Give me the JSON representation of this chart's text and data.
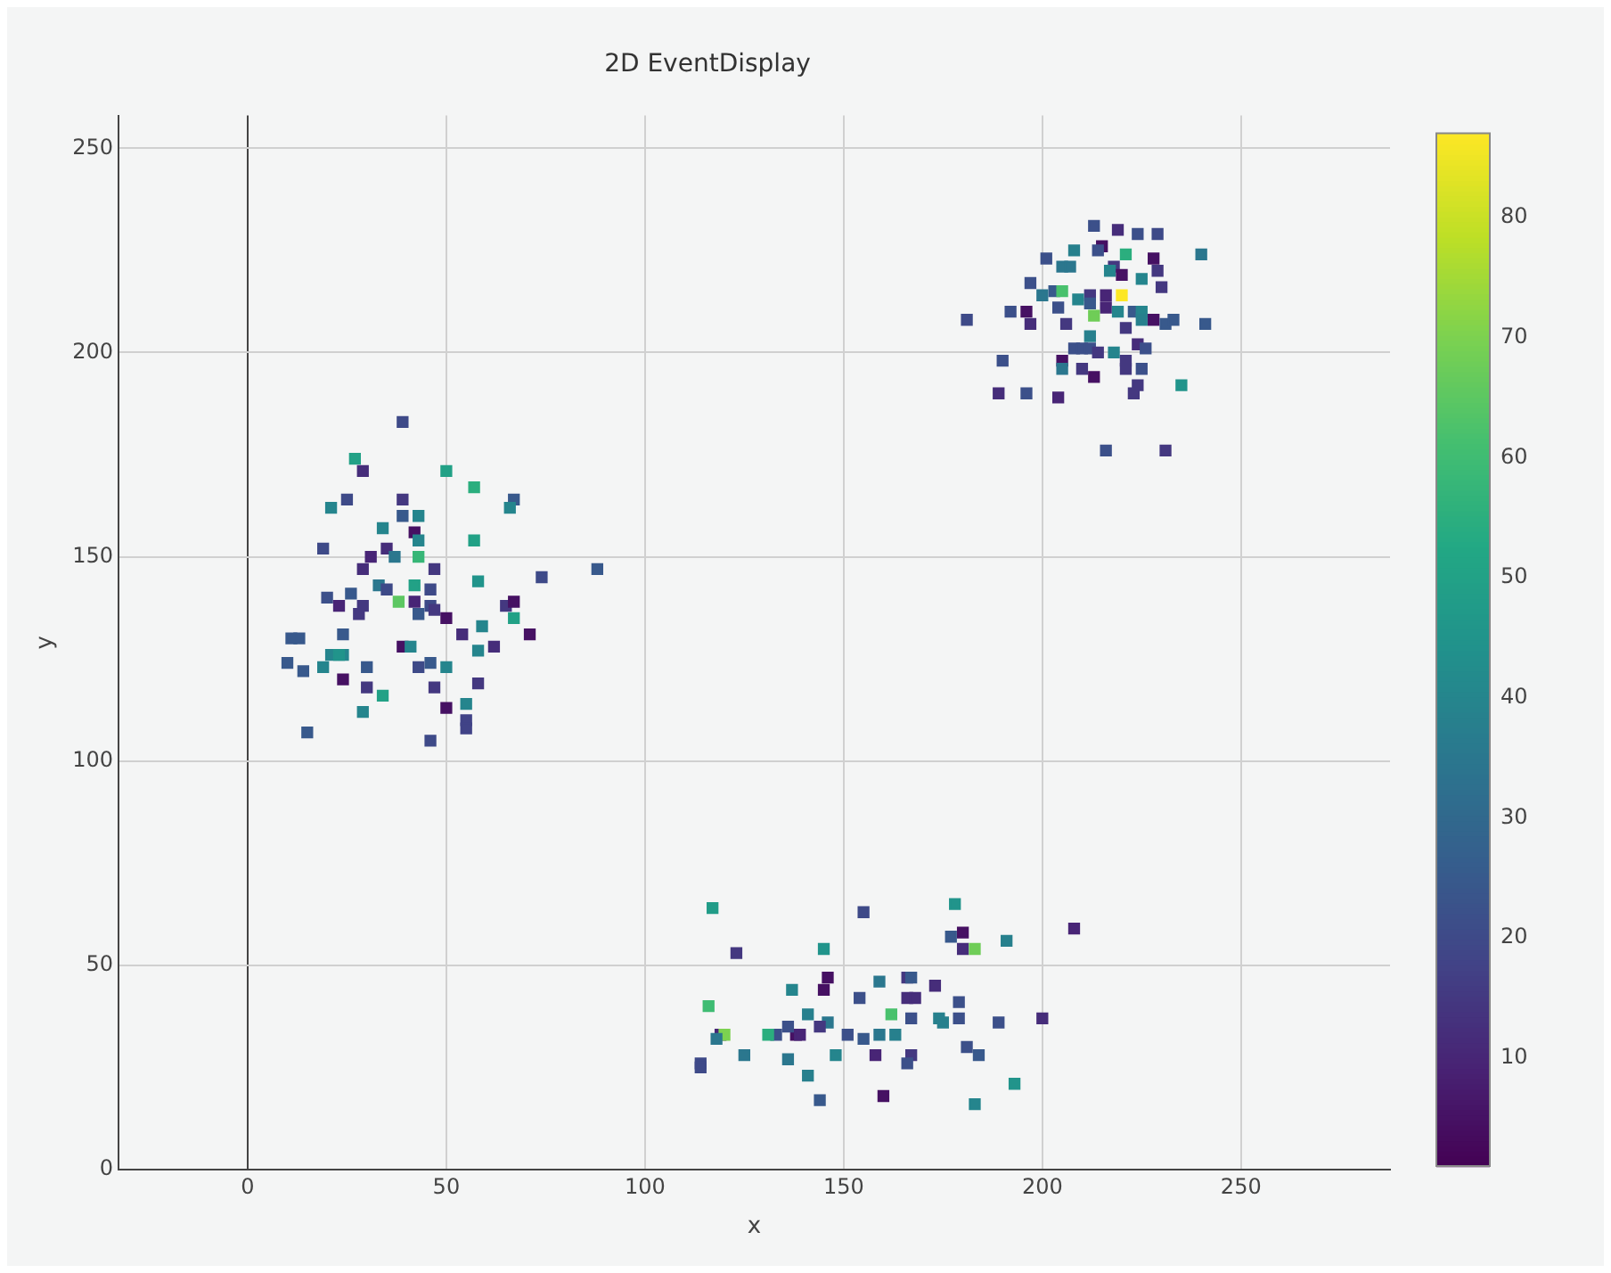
{
  "chart_data": {
    "type": "scatter",
    "title": "2D EventDisplay",
    "xlabel": "x",
    "ylabel": "y",
    "xlim": [
      -32.5,
      287.5
    ],
    "ylim": [
      0,
      258
    ],
    "xticks": [
      0,
      50,
      100,
      150,
      200,
      250
    ],
    "yticks": [
      0,
      50,
      100,
      150,
      200,
      250
    ],
    "grid": true,
    "legend": false,
    "marker": "square",
    "clim": [
      1,
      87
    ],
    "cticks": [
      10,
      20,
      30,
      40,
      50,
      60,
      70,
      80
    ],
    "series": [
      {
        "x": [
          39,
          27,
          29,
          50,
          57,
          25,
          21,
          39,
          39,
          43,
          67,
          66,
          34,
          42,
          43,
          57,
          19,
          31,
          35,
          37,
          43,
          29,
          47,
          74,
          88,
          58,
          33,
          35,
          42,
          46,
          20,
          26,
          23,
          29,
          28,
          38,
          42,
          46,
          43,
          47,
          50,
          54,
          65,
          67,
          67,
          71,
          59,
          11,
          13,
          24,
          24,
          21,
          23,
          10,
          19,
          14,
          30,
          39,
          41,
          43,
          46,
          50,
          58,
          62,
          24,
          30,
          47,
          58,
          34,
          29,
          50,
          55,
          55,
          55,
          15,
          46,
          213,
          219,
          224,
          229,
          215,
          214,
          208,
          221,
          228,
          240,
          201,
          205,
          207,
          218,
          217,
          220,
          229,
          225,
          197,
          203,
          205,
          200,
          212,
          216,
          220,
          230,
          209,
          212,
          204,
          216,
          219,
          223,
          225,
          213,
          192,
          196,
          181,
          197,
          206,
          221,
          225,
          228,
          231,
          233,
          241,
          212,
          208,
          210,
          212,
          214,
          218,
          224,
          226,
          190,
          205,
          205,
          210,
          221,
          221,
          225,
          213,
          224,
          223,
          235,
          189,
          196,
          204,
          216,
          231,
          117,
          155,
          178,
          208,
          180,
          177,
          180,
          183,
          191,
          145,
          123,
          146,
          145,
          137,
          159,
          166,
          167,
          173,
          166,
          168,
          154,
          179,
          162,
          141,
          116,
          167,
          174,
          175,
          179,
          189,
          200,
          146,
          144,
          138,
          139,
          136,
          133,
          131,
          119,
          120,
          118,
          151,
          155,
          159,
          163,
          158,
          167,
          166,
          181,
          184,
          125,
          136,
          148,
          114,
          114,
          141,
          193,
          144,
          160,
          183
        ],
        "values": [
          183,
          174,
          171,
          171,
          167,
          164,
          162,
          164,
          160,
          160,
          164,
          162,
          157,
          156,
          154,
          154,
          152,
          150,
          152,
          150,
          150,
          147,
          147,
          145,
          147,
          144,
          143,
          142,
          143,
          142,
          140,
          141,
          138,
          138,
          136,
          139,
          139,
          138,
          136,
          137,
          135,
          131,
          138,
          139,
          135,
          131,
          133,
          130,
          130,
          131,
          126,
          126,
          126,
          124,
          123,
          122,
          123,
          128,
          128,
          123,
          124,
          123,
          127,
          128,
          120,
          118,
          118,
          119,
          116,
          112,
          113,
          114,
          110,
          108,
          107,
          105,
          231,
          230,
          229,
          229,
          226,
          225,
          225,
          224,
          223,
          224,
          223,
          221,
          221,
          221,
          220,
          219,
          220,
          218,
          217,
          215,
          215,
          214,
          214,
          214,
          214,
          216,
          213,
          212,
          211,
          211,
          210,
          210,
          210,
          209,
          210,
          210,
          208,
          207,
          207,
          206,
          208,
          208,
          207,
          208,
          207,
          204,
          201,
          201,
          201,
          200,
          200,
          202,
          201,
          198,
          198,
          196,
          196,
          198,
          196,
          196,
          194,
          192,
          190,
          192,
          190,
          190,
          189,
          176,
          176,
          64,
          63,
          65,
          59,
          58,
          57,
          54,
          54,
          56,
          54,
          53,
          47,
          44,
          44,
          46,
          47,
          47,
          45,
          42,
          42,
          42,
          41,
          38,
          38,
          40,
          37,
          37,
          36,
          37,
          36,
          37,
          36,
          35,
          33,
          33,
          35,
          33,
          33,
          33,
          33,
          32,
          33,
          32,
          33,
          33,
          28,
          28,
          26,
          30,
          28,
          28,
          27,
          28,
          26,
          25,
          23,
          21,
          17,
          18,
          16
        ],
        "cvalues": [
          20,
          50,
          12,
          50,
          55,
          20,
          40,
          15,
          25,
          40,
          25,
          40,
          40,
          5,
          40,
          50,
          20,
          10,
          12,
          35,
          58,
          12,
          15,
          20,
          25,
          45,
          35,
          20,
          50,
          20,
          22,
          25,
          10,
          15,
          15,
          65,
          10,
          20,
          25,
          15,
          5,
          12,
          15,
          5,
          50,
          5,
          40,
          25,
          25,
          25,
          40,
          40,
          45,
          25,
          40,
          25,
          25,
          5,
          40,
          20,
          25,
          40,
          40,
          12,
          5,
          15,
          15,
          15,
          50,
          40,
          5,
          40,
          18,
          18,
          25,
          20,
          22,
          12,
          22,
          20,
          5,
          22,
          38,
          55,
          5,
          35,
          22,
          35,
          35,
          15,
          40,
          5,
          15,
          40,
          22,
          25,
          62,
          35,
          15,
          10,
          87,
          15,
          40,
          25,
          22,
          10,
          40,
          25,
          40,
          68,
          22,
          5,
          20,
          12,
          15,
          15,
          38,
          5,
          25,
          25,
          25,
          38,
          22,
          22,
          22,
          15,
          40,
          12,
          22,
          22,
          5,
          35,
          15,
          15,
          15,
          22,
          5,
          15,
          15,
          45,
          12,
          22,
          10,
          22,
          15,
          48,
          20,
          45,
          10,
          5,
          25,
          12,
          68,
          38,
          45,
          15,
          5,
          5,
          40,
          35,
          15,
          25,
          12,
          12,
          12,
          22,
          22,
          62,
          38,
          60,
          22,
          38,
          38,
          22,
          22,
          12,
          35,
          15,
          5,
          10,
          22,
          22,
          55,
          10,
          70,
          35,
          22,
          25,
          35,
          38,
          10,
          15,
          22,
          22,
          25,
          35,
          35,
          40,
          20,
          20,
          38,
          45,
          25,
          5,
          40
        ]
      }
    ]
  }
}
